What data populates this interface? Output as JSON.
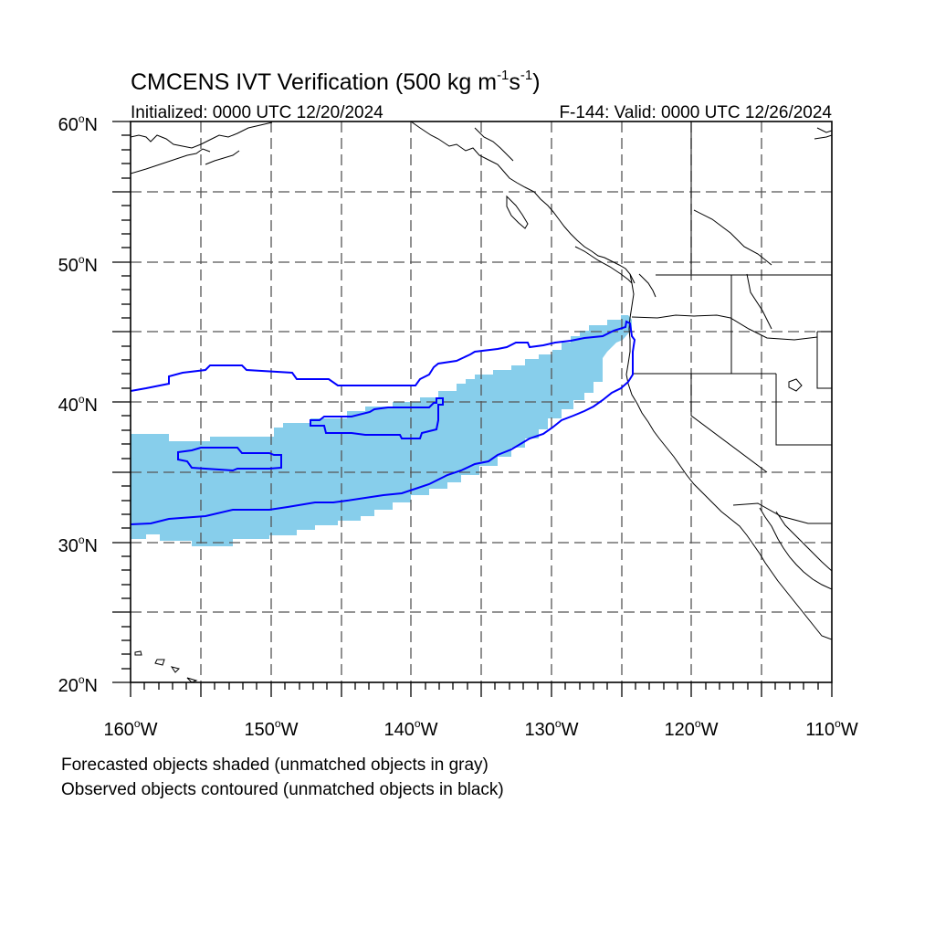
{
  "title": {
    "main": "CMCENS IVT Verification (500 kg m",
    "exp1": "-1",
    "mid": "s",
    "exp2": "-1",
    "close": ")"
  },
  "subtitle_left": "Initialized: 0000 UTC 12/20/2024",
  "subtitle_right": "F-144: Valid: 0000 UTC 12/26/2024",
  "map": {
    "lon_range": [
      -160,
      -110
    ],
    "lat_range": [
      20,
      60
    ],
    "projection": "cylindrical equidistant",
    "grid": "dashed, 5 degree",
    "lat_labels": [
      "20",
      "30",
      "40",
      "50",
      "60"
    ],
    "lat_suffix": "N",
    "lon_labels": [
      "160",
      "150",
      "140",
      "130",
      "120",
      "110"
    ],
    "lon_suffix": "W",
    "degree_symbol": "o"
  },
  "colors": {
    "forecast_fill": "#87ceeb",
    "observed_contour": "#0000ff",
    "coastline": "#000000",
    "grid": "#555555"
  },
  "legend": {
    "line1": "Forecasted objects shaded (unmatched objects in gray)",
    "line2": "Observed objects contoured (unmatched objects in black)"
  }
}
